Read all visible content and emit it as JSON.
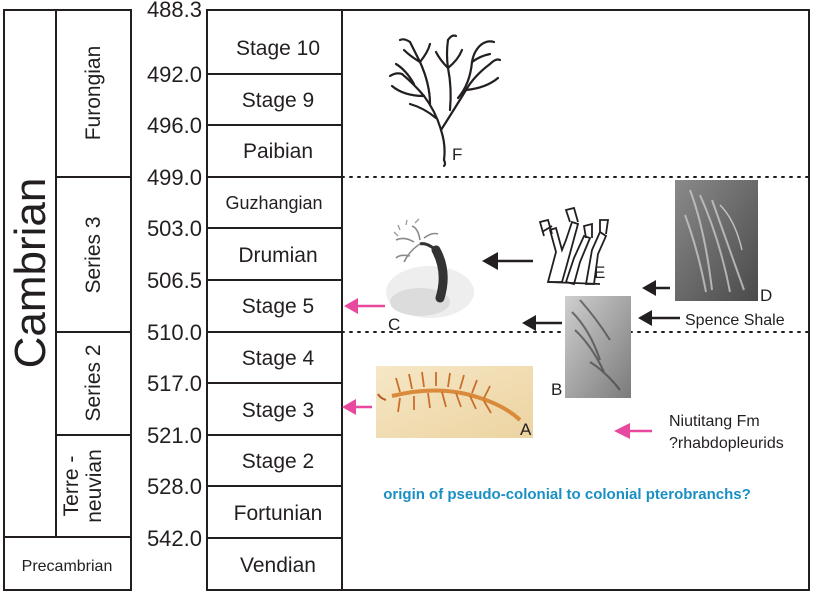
{
  "era": "Cambrian",
  "precambrian": "Precambrian",
  "series": [
    {
      "id": "furongian",
      "label": "Furongian"
    },
    {
      "id": "series3",
      "label": "Series 3"
    },
    {
      "id": "series2",
      "label": "Series 2"
    },
    {
      "id": "terreneuvian",
      "line1": "Terre -",
      "line2": "neuvian"
    }
  ],
  "ages": [
    "488.3",
    "492.0",
    "496.0",
    "499.0",
    "503.0",
    "506.5",
    "510.0",
    "517.0",
    "521.0",
    "528.0",
    "542.0"
  ],
  "stages": [
    "Stage 10",
    "Stage 9",
    "Paibian",
    "Guzhangian",
    "Drumian",
    "Stage 5",
    "Stage 4",
    "Stage 3",
    "Stage 2",
    "Fortunian",
    "Vendian"
  ],
  "fossils": {
    "A": "A",
    "B": "B",
    "C": "C",
    "D": "D",
    "E": "E",
    "F": "F"
  },
  "annotations": {
    "spence": "Spence Shale",
    "niutitang_1": "Niutitang Fm",
    "niutitang_2": "?rhabdopleurids",
    "origin": "origin of pseudo-colonial to colonial pterobranchs?"
  },
  "colors": {
    "arrow_pink": "#e8499f",
    "origin_text": "#1a8fc4",
    "fossil_A": "#d98a3a"
  }
}
